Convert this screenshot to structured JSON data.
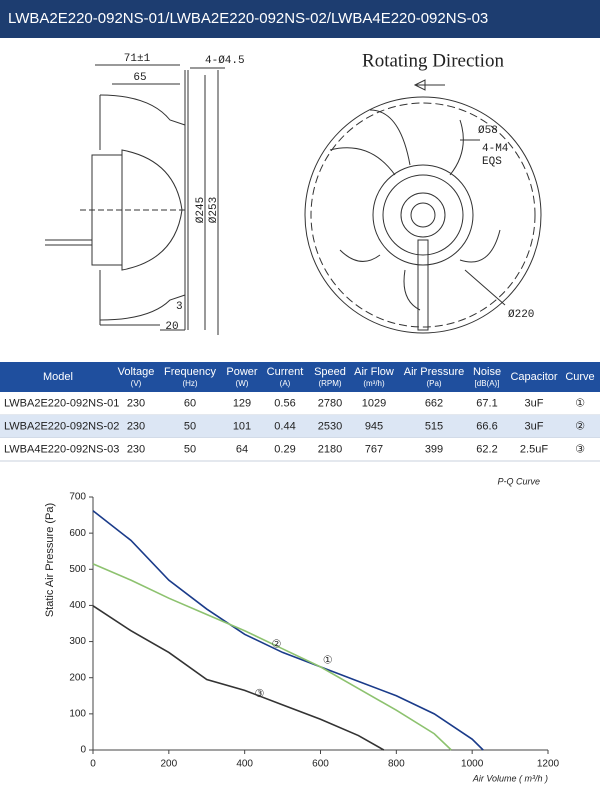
{
  "header": {
    "title": "LWBA2E220-092NS-01/LWBA2E220-092NS-02/LWBA4E220-092NS-03"
  },
  "drawing": {
    "side_labels": [
      "71±1",
      "65",
      "4-Ø4.5",
      "Ø245",
      "Ø253",
      "3",
      "20"
    ],
    "front_title": "Rotating Direction",
    "front_labels": [
      "Ø58",
      "4-M4",
      "EQS",
      "Ø220"
    ]
  },
  "table": {
    "headers": [
      {
        "name": "Model"
      },
      {
        "name": "Voltage",
        "unit": "(V)"
      },
      {
        "name": "Frequency",
        "unit": "(Hz)"
      },
      {
        "name": "Power",
        "unit": "(W)"
      },
      {
        "name": "Current",
        "unit": "(A)"
      },
      {
        "name": "Speed",
        "unit": "(RPM)"
      },
      {
        "name": "Air Flow",
        "unit": "(m³/h)"
      },
      {
        "name": "Air Pressure",
        "unit": "(Pa)"
      },
      {
        "name": "Noise",
        "unit": "[dB(A)]"
      },
      {
        "name": "Capacitor"
      },
      {
        "name": "Curve"
      }
    ],
    "rows": [
      [
        "LWBA2E220-092NS-01",
        "230",
        "60",
        "129",
        "0.56",
        "2780",
        "1029",
        "662",
        "67.1",
        "3uF",
        "①"
      ],
      [
        "LWBA2E220-092NS-02",
        "230",
        "50",
        "101",
        "0.44",
        "2530",
        "945",
        "515",
        "66.6",
        "3uF",
        "②"
      ],
      [
        "LWBA4E220-092NS-03",
        "230",
        "50",
        "64",
        "0.29",
        "2180",
        "767",
        "399",
        "62.2",
        "2.5uF",
        "③"
      ]
    ]
  },
  "chart_data": {
    "type": "line",
    "title": "P-Q Curve",
    "x_label": "Air Volume ( m³/h )",
    "y_label": "Static Air Pressure  (Pa)",
    "xlim": [
      0,
      1200
    ],
    "ylim": [
      0,
      700
    ],
    "xticks": [
      0,
      200,
      400,
      600,
      800,
      1000,
      1200
    ],
    "yticks": [
      0,
      100,
      200,
      300,
      400,
      500,
      600,
      700
    ],
    "series": [
      {
        "name": "①",
        "color": "#1a3b8a",
        "x": [
          0,
          100,
          200,
          300,
          400,
          500,
          600,
          700,
          800,
          900,
          1000,
          1029
        ],
        "values": [
          662,
          580,
          470,
          390,
          320,
          270,
          230,
          190,
          150,
          100,
          30,
          0
        ]
      },
      {
        "name": "②",
        "color": "#8dc26f",
        "x": [
          0,
          100,
          200,
          300,
          400,
          500,
          600,
          700,
          800,
          900,
          945
        ],
        "values": [
          515,
          470,
          420,
          375,
          330,
          280,
          230,
          170,
          110,
          45,
          0
        ]
      },
      {
        "name": "③",
        "color": "#333333",
        "x": [
          0,
          100,
          200,
          300,
          400,
          500,
          600,
          700,
          767
        ],
        "values": [
          399,
          330,
          270,
          195,
          165,
          125,
          85,
          40,
          0
        ]
      }
    ]
  }
}
